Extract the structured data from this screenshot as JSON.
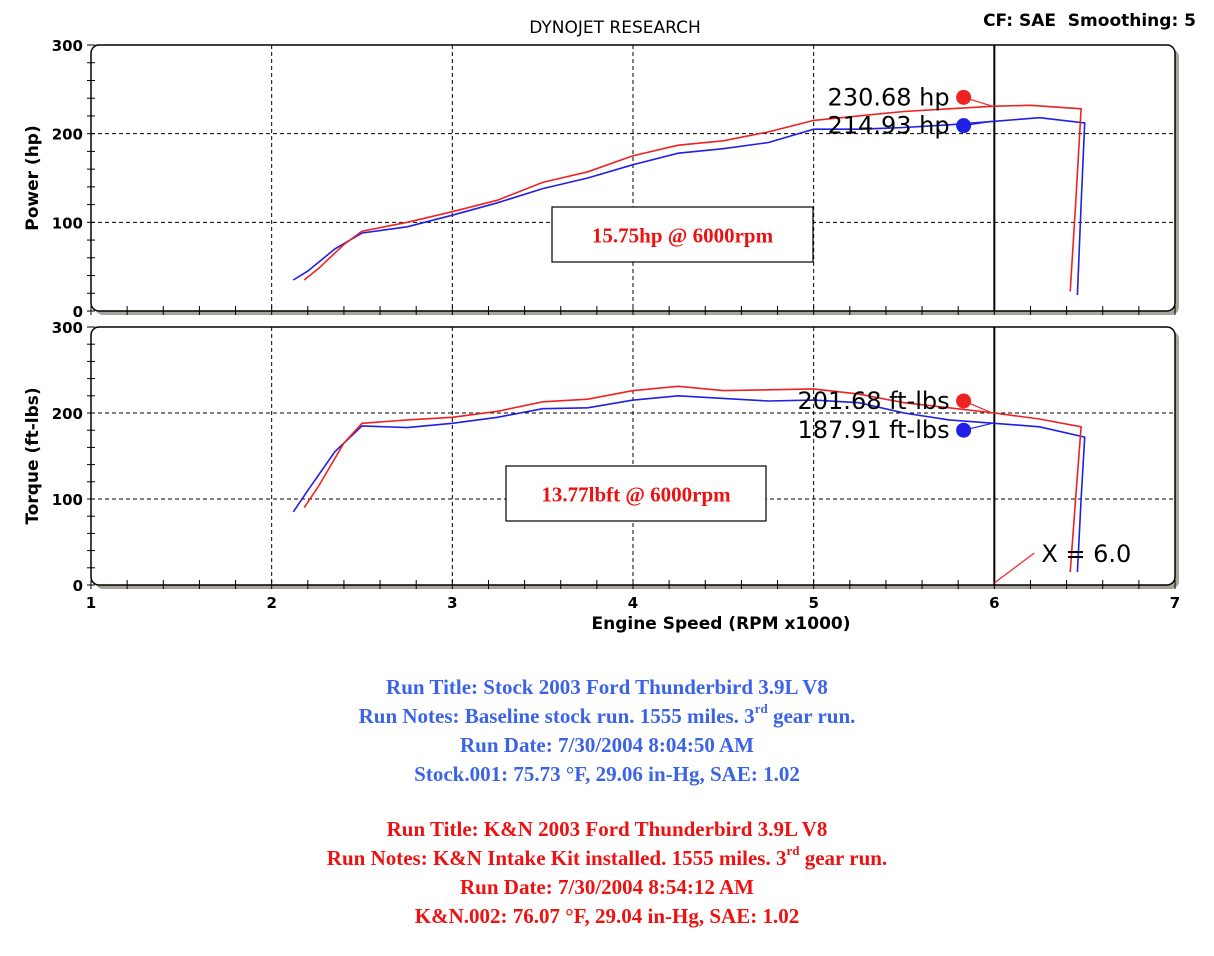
{
  "colors": {
    "run_stock": "#1f1fe6",
    "run_kn": "#ee2222",
    "note_stock": "#3b63e8",
    "note_kn": "#ee1111",
    "frame": "#000000",
    "shadow": "#a8a49a"
  },
  "header": {
    "title": "DYNOJET RESEARCH",
    "settings": "CF: SAE  Smoothing: 5"
  },
  "chart_data": [
    {
      "type": "line",
      "ylabel": "Power (hp)",
      "xlabel": "",
      "xlim": [
        1,
        7
      ],
      "ylim": [
        0,
        300
      ],
      "yticks": [
        "0",
        "100",
        "200",
        "300"
      ],
      "grid": true,
      "series": [
        {
          "name": "Stock",
          "color": "#1f1fe6",
          "x": [
            2.12,
            2.2,
            2.35,
            2.5,
            2.75,
            3.0,
            3.25,
            3.5,
            3.75,
            4.0,
            4.25,
            4.5,
            4.75,
            5.0,
            5.25,
            5.5,
            5.75,
            6.0,
            6.25,
            6.5,
            6.48,
            6.46
          ],
          "y": [
            35,
            45,
            70,
            88,
            95,
            108,
            122,
            138,
            150,
            165,
            178,
            183,
            190,
            205,
            205,
            207,
            210,
            214,
            218,
            212,
            120,
            18
          ]
        },
        {
          "name": "K&N",
          "color": "#ee2222",
          "x": [
            2.18,
            2.26,
            2.4,
            2.5,
            2.75,
            3.0,
            3.25,
            3.5,
            3.75,
            4.0,
            4.25,
            4.5,
            4.75,
            5.0,
            5.25,
            5.5,
            5.75,
            6.0,
            6.2,
            6.48,
            6.45,
            6.42
          ],
          "y": [
            35,
            48,
            75,
            90,
            100,
            112,
            125,
            145,
            157,
            175,
            187,
            192,
            202,
            215,
            220,
            225,
            228,
            231,
            232,
            228,
            120,
            22
          ]
        }
      ],
      "markers": [
        {
          "label": "230.68 hp",
          "x": 5.83,
          "y": 241,
          "color": "#ee2222"
        },
        {
          "label": "214.93 hp",
          "x": 5.83,
          "y": 209,
          "color": "#1f1fe6"
        }
      ],
      "annotation": "15.75hp @ 6000rpm",
      "cursor_x": 6.0
    },
    {
      "type": "line",
      "ylabel": "Torque (ft-lbs)",
      "xlabel": "Engine Speed (RPM x1000)",
      "xlim": [
        1,
        7
      ],
      "ylim": [
        0,
        300
      ],
      "xticks": [
        "1",
        "2",
        "3",
        "4",
        "5",
        "6",
        "7"
      ],
      "yticks": [
        "0",
        "100",
        "200",
        "300"
      ],
      "grid": true,
      "series": [
        {
          "name": "Stock",
          "color": "#1f1fe6",
          "x": [
            2.12,
            2.2,
            2.35,
            2.5,
            2.75,
            3.0,
            3.25,
            3.5,
            3.75,
            4.0,
            4.25,
            4.5,
            4.75,
            5.0,
            5.25,
            5.5,
            5.75,
            6.0,
            6.25,
            6.5,
            6.48,
            6.46
          ],
          "y": [
            85,
            110,
            155,
            185,
            183,
            188,
            195,
            205,
            206,
            215,
            220,
            217,
            214,
            215,
            212,
            200,
            192,
            188,
            184,
            172,
            100,
            15
          ]
        },
        {
          "name": "K&N",
          "color": "#ee2222",
          "x": [
            2.18,
            2.26,
            2.4,
            2.5,
            2.75,
            3.0,
            3.25,
            3.5,
            3.75,
            4.0,
            4.25,
            4.5,
            4.75,
            5.0,
            5.25,
            5.5,
            5.75,
            6.0,
            6.25,
            6.48,
            6.45,
            6.42
          ],
          "y": [
            90,
            115,
            165,
            188,
            192,
            195,
            202,
            213,
            216,
            226,
            231,
            226,
            227,
            228,
            222,
            212,
            206,
            200,
            193,
            184,
            100,
            15
          ]
        }
      ],
      "markers": [
        {
          "label": "201.68 ft-lbs",
          "x": 5.83,
          "y": 214,
          "color": "#ee2222"
        },
        {
          "label": "187.91 ft-lbs",
          "x": 5.83,
          "y": 180,
          "color": "#1f1fe6"
        }
      ],
      "annotation": "13.77lbft @ 6000rpm",
      "cursor_x": 6.0,
      "cursor_label": "X = 6.0"
    }
  ],
  "runs": [
    {
      "title": "Run Title: Stock 2003 Ford Thunderbird 3.9L V8",
      "notes_before": "Run Notes: Baseline stock run. 1555 miles. 3",
      "notes_sup": "rd",
      "notes_after": " gear run.",
      "date": "Run Date: 7/30/2004 8:04:50 AM",
      "conditions": "Stock.001: 75.73 °F, 29.06 in-Hg, SAE: 1.02"
    },
    {
      "title": "Run Title: K&N 2003 Ford  Thunderbird 3.9L V8",
      "notes_before": "Run Notes: K&N Intake Kit installed. 1555 miles. 3",
      "notes_sup": "rd",
      "notes_after": " gear run.",
      "date": "Run Date: 7/30/2004 8:54:12 AM",
      "conditions": "K&N.002: 76.07 °F, 29.04 in-Hg, SAE: 1.02"
    }
  ]
}
